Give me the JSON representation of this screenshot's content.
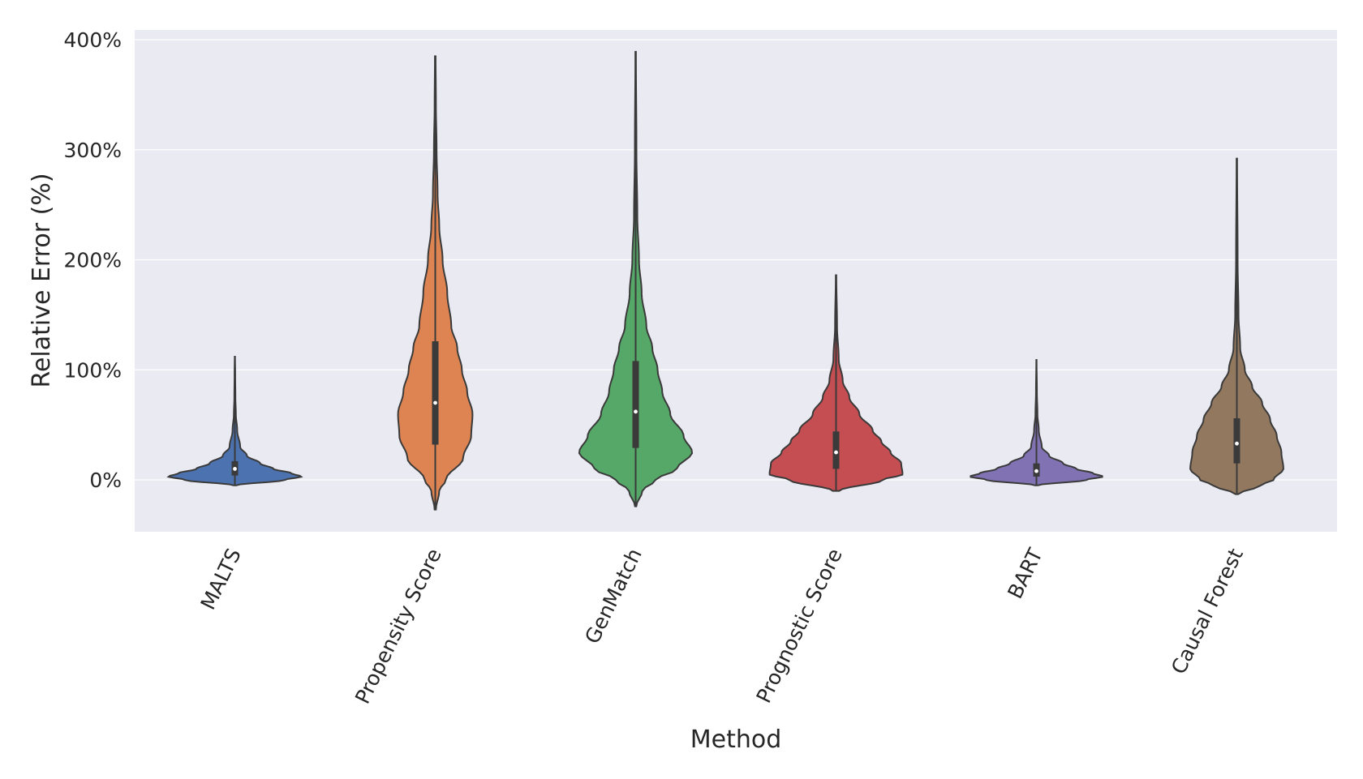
{
  "chart_data": {
    "type": "violin",
    "xlabel": "Method",
    "ylabel": "Relative Error (%)",
    "ylim": [
      -47,
      409
    ],
    "yticks": [
      0,
      100,
      200,
      300,
      400
    ],
    "ytick_suffix": "%",
    "grid": true,
    "categories": [
      "MALTS",
      "Propensity Score",
      "GenMatch",
      "Prognostic Score",
      "BART",
      "Causal Forest"
    ],
    "series": [
      {
        "category": "MALTS",
        "color": "#4c72b0",
        "min": -5,
        "max": 112,
        "q1": 4,
        "median": 10,
        "q3": 17,
        "density": [
          [
            -5,
            0.02
          ],
          [
            0,
            0.75
          ],
          [
            3,
            1.0
          ],
          [
            6,
            0.85
          ],
          [
            10,
            0.58
          ],
          [
            15,
            0.38
          ],
          [
            22,
            0.18
          ],
          [
            30,
            0.08
          ],
          [
            45,
            0.035
          ],
          [
            60,
            0.015
          ],
          [
            75,
            0.008
          ],
          [
            95,
            0.005
          ],
          [
            112,
            0.002
          ]
        ]
      },
      {
        "category": "Propensity Score",
        "color": "#dd8452",
        "min": -27,
        "max": 385,
        "q1": 32,
        "median": 70,
        "q3": 126,
        "density": [
          [
            -27,
            0.01
          ],
          [
            -10,
            0.06
          ],
          [
            0,
            0.16
          ],
          [
            20,
            0.42
          ],
          [
            40,
            0.54
          ],
          [
            60,
            0.56
          ],
          [
            80,
            0.48
          ],
          [
            100,
            0.4
          ],
          [
            120,
            0.33
          ],
          [
            140,
            0.24
          ],
          [
            170,
            0.18
          ],
          [
            200,
            0.11
          ],
          [
            230,
            0.06
          ],
          [
            260,
            0.035
          ],
          [
            300,
            0.02
          ],
          [
            340,
            0.01
          ],
          [
            385,
            0.005
          ]
        ]
      },
      {
        "category": "GenMatch",
        "color": "#55a868",
        "min": -24,
        "max": 389,
        "q1": 29,
        "median": 62,
        "q3": 108,
        "density": [
          [
            -24,
            0.01
          ],
          [
            -10,
            0.1
          ],
          [
            0,
            0.3
          ],
          [
            10,
            0.62
          ],
          [
            25,
            0.85
          ],
          [
            40,
            0.72
          ],
          [
            60,
            0.52
          ],
          [
            80,
            0.4
          ],
          [
            100,
            0.33
          ],
          [
            120,
            0.25
          ],
          [
            140,
            0.16
          ],
          [
            170,
            0.09
          ],
          [
            200,
            0.05
          ],
          [
            240,
            0.025
          ],
          [
            300,
            0.012
          ],
          [
            389,
            0.004
          ]
        ]
      },
      {
        "category": "Prognostic Score",
        "color": "#c44e52",
        "min": -10,
        "max": 186,
        "q1": 10,
        "median": 25,
        "q3": 44,
        "density": [
          [
            -10,
            0.05
          ],
          [
            0,
            0.7
          ],
          [
            5,
            1.0
          ],
          [
            15,
            0.98
          ],
          [
            25,
            0.82
          ],
          [
            35,
            0.68
          ],
          [
            45,
            0.55
          ],
          [
            60,
            0.35
          ],
          [
            75,
            0.2
          ],
          [
            90,
            0.1
          ],
          [
            110,
            0.04
          ],
          [
            140,
            0.015
          ],
          [
            186,
            0.004
          ]
        ]
      },
      {
        "category": "BART",
        "color": "#8172b3",
        "min": -5,
        "max": 109,
        "q1": 3,
        "median": 8,
        "q3": 15,
        "density": [
          [
            -5,
            0.02
          ],
          [
            0,
            0.75
          ],
          [
            3,
            1.0
          ],
          [
            6,
            0.85
          ],
          [
            10,
            0.6
          ],
          [
            15,
            0.4
          ],
          [
            22,
            0.19
          ],
          [
            30,
            0.08
          ],
          [
            45,
            0.035
          ],
          [
            60,
            0.015
          ],
          [
            80,
            0.007
          ],
          [
            109,
            0.002
          ]
        ]
      },
      {
        "category": "Causal Forest",
        "color": "#937860",
        "min": -13,
        "max": 292,
        "q1": 15,
        "median": 33,
        "q3": 56,
        "density": [
          [
            -13,
            0.02
          ],
          [
            -5,
            0.35
          ],
          [
            0,
            0.55
          ],
          [
            10,
            0.7
          ],
          [
            25,
            0.67
          ],
          [
            40,
            0.6
          ],
          [
            55,
            0.5
          ],
          [
            70,
            0.38
          ],
          [
            85,
            0.23
          ],
          [
            100,
            0.12
          ],
          [
            120,
            0.05
          ],
          [
            150,
            0.025
          ],
          [
            200,
            0.012
          ],
          [
            292,
            0.004
          ]
        ]
      }
    ]
  }
}
